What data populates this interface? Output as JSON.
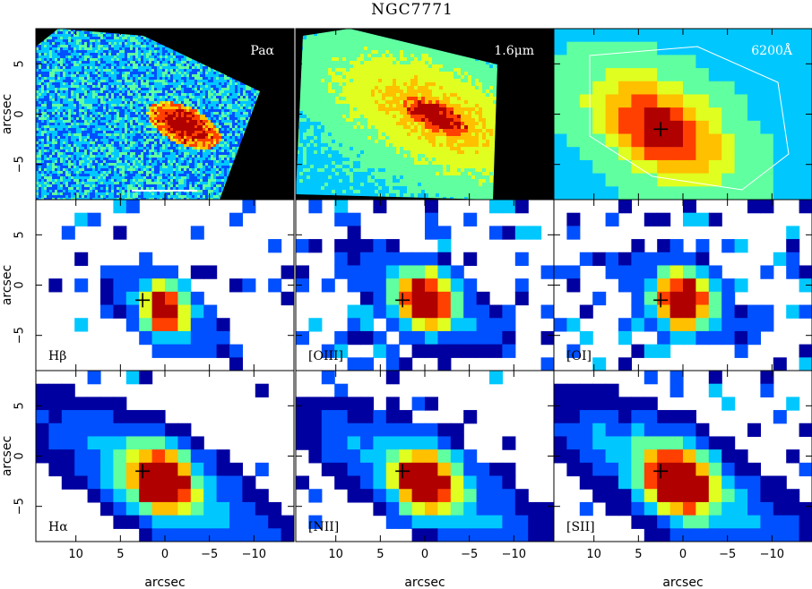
{
  "figure": {
    "title": "NGC7771"
  },
  "chart_data": {
    "type": "heatmap",
    "title": "NGC7771",
    "xlabel": "arcsec",
    "ylabel": "arcsec",
    "xlim": [
      14.5,
      -14.5
    ],
    "ylim": [
      -8.5,
      8.5
    ],
    "xticks": [
      10,
      5,
      0,
      -5,
      -10
    ],
    "yticks": [
      5,
      0,
      -5
    ],
    "xtick_labels": [
      "10",
      "5",
      "0",
      "−5",
      "−10"
    ],
    "ytick_labels": [
      "5",
      "0",
      "−5"
    ],
    "nucleus_marker": {
      "x": 2.5,
      "y": -1.5
    },
    "scale_bar": true,
    "colormap": [
      "#0000a0",
      "#0050ff",
      "#00c8ff",
      "#60ffa0",
      "#e0ff20",
      "#ffc000",
      "#ff4000",
      "#b00000"
    ],
    "panels": [
      {
        "label": "Paα",
        "row": 0,
        "col": 0,
        "peak": {
          "x": -2,
          "y": -1
        }
      },
      {
        "label": "1.6μm",
        "row": 0,
        "col": 1,
        "peak": {
          "x": -1,
          "y": 0
        }
      },
      {
        "label": "6200Å",
        "row": 0,
        "col": 2,
        "peak": {
          "x": 2.5,
          "y": -1.5
        }
      },
      {
        "label": "Hβ",
        "row": 1,
        "col": 0,
        "peak": {
          "x": 0,
          "y": -2.5
        }
      },
      {
        "label": "[OIII]",
        "row": 1,
        "col": 1,
        "peak": {
          "x": 0,
          "y": -1.5
        }
      },
      {
        "label": "[OI]",
        "row": 1,
        "col": 2,
        "peak": {
          "x": 0,
          "y": -1.5
        }
      },
      {
        "label": "Hα",
        "row": 2,
        "col": 0,
        "peak": {
          "x": 0.5,
          "y": -2.5
        }
      },
      {
        "label": "[NII]",
        "row": 2,
        "col": 1,
        "peak": {
          "x": 0,
          "y": -2.5
        }
      },
      {
        "label": "[SII]",
        "row": 2,
        "col": 2,
        "peak": {
          "x": 0.5,
          "y": -2.5
        }
      }
    ]
  }
}
